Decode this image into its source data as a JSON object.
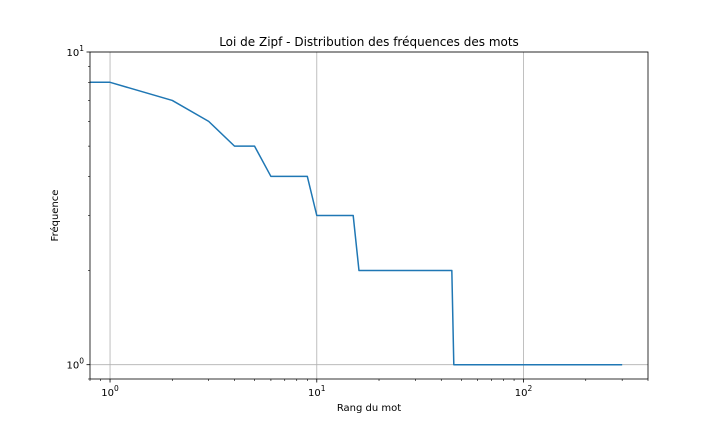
{
  "chart_data": {
    "type": "line",
    "title": "Loi de Zipf - Distribution des fréquences des mots",
    "xlabel": "Rang du mot",
    "ylabel": "Fréquence",
    "x_scale": "log",
    "y_scale": "log",
    "xlim": [
      0.8,
      400
    ],
    "ylim": [
      0.9,
      10
    ],
    "x_major_ticks": [
      1,
      10,
      100
    ],
    "x_major_tick_labels": [
      "10^0",
      "10^1",
      "10^2"
    ],
    "y_major_ticks": [
      1,
      10
    ],
    "y_major_tick_labels": [
      "10^0",
      "10^1"
    ],
    "grid": true,
    "series": [
      {
        "color": "#1f77b4",
        "x": [
          0.8,
          1,
          2,
          3,
          4,
          5,
          6,
          9,
          10,
          15,
          16,
          45,
          46,
          300
        ],
        "values": [
          8,
          8,
          7,
          6,
          5,
          5,
          4,
          4,
          3,
          3,
          2,
          2,
          1,
          1
        ]
      }
    ]
  }
}
